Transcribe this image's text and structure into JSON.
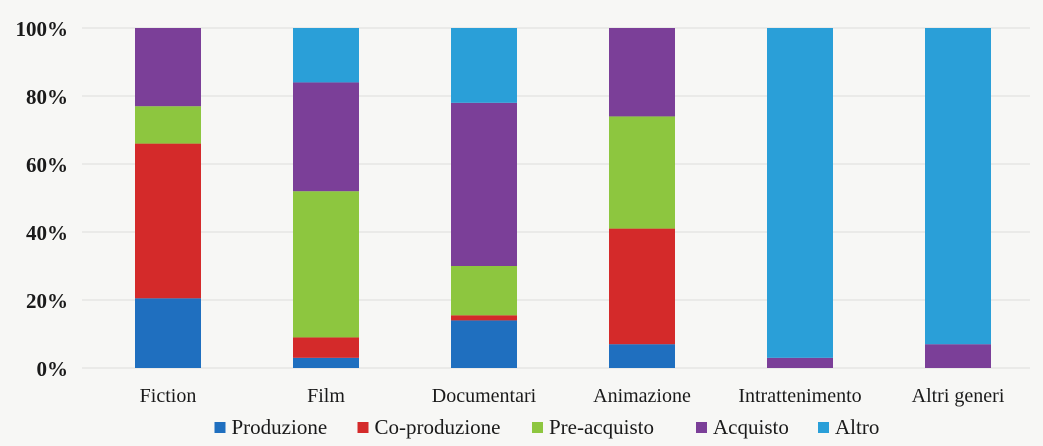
{
  "chart_data": {
    "type": "bar",
    "stacked": true,
    "categories": [
      "Fiction",
      "Film",
      "Documentari",
      "Animazione",
      "Intrattenimento",
      "Altri generi"
    ],
    "y_tick_labels": [
      "0%",
      "20%",
      "40%",
      "60%",
      "80%",
      "100%"
    ],
    "ylim": [
      0,
      100
    ],
    "grid": true,
    "legend_position": "bottom",
    "series": [
      {
        "name": "Produzione",
        "color": "#1f6fbf",
        "values": [
          20.5,
          3,
          14,
          7,
          0,
          0
        ]
      },
      {
        "name": "Co-produzione",
        "color": "#d42a2a",
        "values": [
          45.5,
          6,
          1.5,
          34,
          0,
          0
        ]
      },
      {
        "name": "Pre-acquisto",
        "color": "#8dc63f",
        "values": [
          11,
          43,
          14.5,
          33,
          0,
          0
        ]
      },
      {
        "name": "Acquisto",
        "color": "#7b3f98",
        "values": [
          23,
          32,
          48,
          26,
          3,
          7
        ]
      },
      {
        "name": "Altro",
        "color": "#2a9fd8",
        "values": [
          0,
          16,
          22,
          0,
          97,
          93
        ]
      }
    ]
  }
}
